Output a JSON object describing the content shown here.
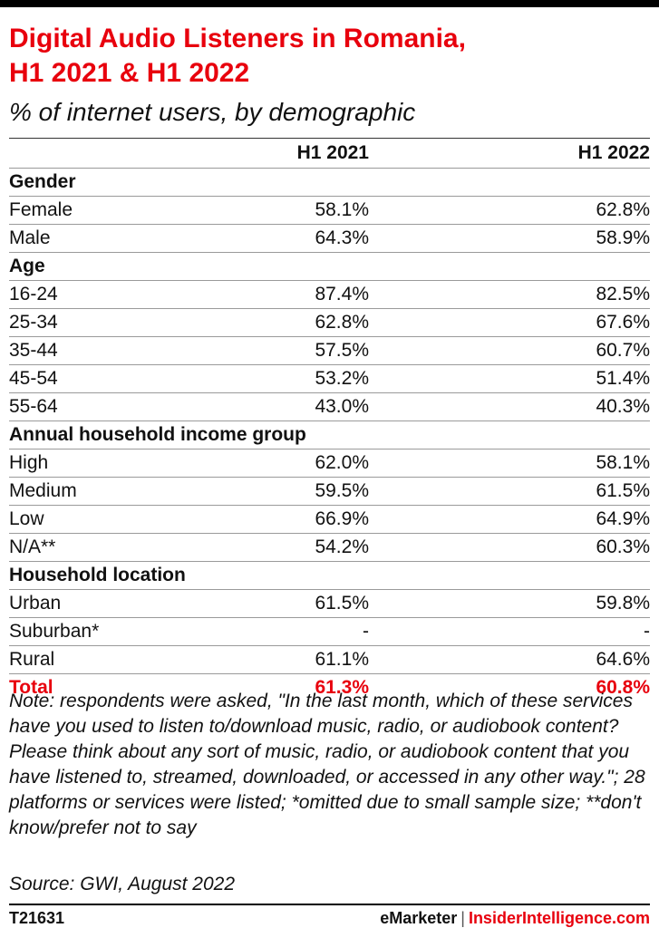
{
  "colors": {
    "accent": "#e8000d",
    "text": "#111111"
  },
  "chart_data": {
    "type": "table",
    "title": "Digital Audio Listeners in Romania, H1 2021 & H1 2022",
    "subtitle": "% of internet users, by demographic",
    "columns": [
      "H1 2021",
      "H1 2022"
    ],
    "groups": [
      {
        "name": "Gender",
        "rows": [
          {
            "label": "Female",
            "values": [
              "58.1%",
              "62.8%"
            ]
          },
          {
            "label": "Male",
            "values": [
              "64.3%",
              "58.9%"
            ]
          }
        ]
      },
      {
        "name": "Age",
        "rows": [
          {
            "label": "16-24",
            "values": [
              "87.4%",
              "82.5%"
            ]
          },
          {
            "label": "25-34",
            "values": [
              "62.8%",
              "67.6%"
            ]
          },
          {
            "label": "35-44",
            "values": [
              "57.5%",
              "60.7%"
            ]
          },
          {
            "label": "45-54",
            "values": [
              "53.2%",
              "51.4%"
            ]
          },
          {
            "label": "55-64",
            "values": [
              "43.0%",
              "40.3%"
            ]
          }
        ]
      },
      {
        "name": "Annual household income group",
        "rows": [
          {
            "label": "High",
            "values": [
              "62.0%",
              "58.1%"
            ]
          },
          {
            "label": "Medium",
            "values": [
              "59.5%",
              "61.5%"
            ]
          },
          {
            "label": "Low",
            "values": [
              "66.9%",
              "64.9%"
            ]
          },
          {
            "label": "N/A**",
            "values": [
              "54.2%",
              "60.3%"
            ]
          }
        ]
      },
      {
        "name": "Household location",
        "rows": [
          {
            "label": "Urban",
            "values": [
              "61.5%",
              "59.8%"
            ]
          },
          {
            "label": "Suburban*",
            "values": [
              "-",
              "-"
            ]
          },
          {
            "label": "Rural",
            "values": [
              "61.1%",
              "64.6%"
            ]
          }
        ]
      }
    ],
    "total": {
      "label": "Total",
      "values": [
        "61.3%",
        "60.8%"
      ]
    }
  },
  "title_line1": "Digital Audio Listeners in Romania,",
  "title_line2": "H1 2021 & H1 2022",
  "note": "Note: respondents were asked, \"In the last month, which of these services have you used to listen to/download music, radio, or audiobook content? Please think about any sort of music, radio, or audiobook content that you have listened to, streamed, downloaded, or accessed in any other way.\"; 28 platforms or services were listed; *omitted due to small sample size; **don't know/prefer not to say",
  "source": "Source: GWI, August 2022",
  "footer": {
    "chart_id": "T21631",
    "brand1": "eMarketer",
    "separator": "|",
    "brand2": "InsiderIntelligence.com"
  }
}
